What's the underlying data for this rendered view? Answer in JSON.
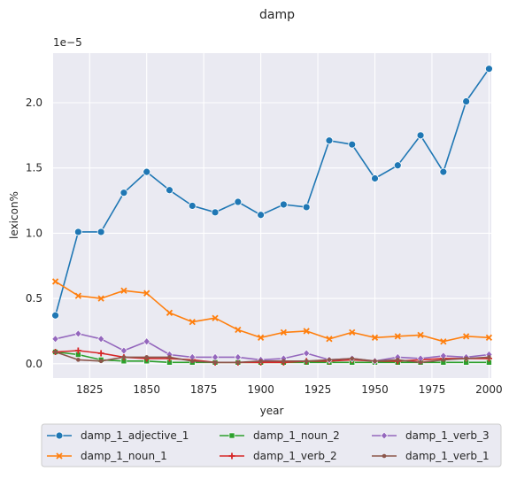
{
  "chart_data": {
    "type": "line",
    "title": "damp",
    "xlabel": "year",
    "ylabel": "lexicon%",
    "y_scale_label": "1e−5",
    "xlim": [
      1809,
      2001
    ],
    "ylim": [
      -0.11,
      2.38
    ],
    "x_ticks": [
      1825,
      1850,
      1875,
      1900,
      1925,
      1950,
      1975,
      2000
    ],
    "y_ticks": [
      0.0,
      0.5,
      1.0,
      1.5,
      2.0
    ],
    "y_tick_labels": [
      "0.0",
      "0.5",
      "1.0",
      "1.5",
      "2.0"
    ],
    "grid": true,
    "legend_position": "bottom",
    "x": [
      1810,
      1820,
      1830,
      1840,
      1850,
      1860,
      1870,
      1880,
      1890,
      1900,
      1910,
      1920,
      1930,
      1940,
      1950,
      1960,
      1970,
      1980,
      1990,
      2000
    ],
    "series": [
      {
        "name": "damp_1_adjective_1",
        "color": "#1f77b4",
        "marker": "circle",
        "values": [
          0.37,
          1.01,
          1.01,
          1.31,
          1.47,
          1.33,
          1.21,
          1.16,
          1.24,
          1.14,
          1.22,
          1.2,
          1.71,
          1.68,
          1.42,
          1.52,
          1.75,
          1.47,
          2.01,
          2.26
        ]
      },
      {
        "name": "damp_1_noun_1",
        "color": "#ff7f0e",
        "marker": "x",
        "values": [
          0.63,
          0.52,
          0.5,
          0.56,
          0.54,
          0.39,
          0.32,
          0.35,
          0.26,
          0.2,
          0.24,
          0.25,
          0.19,
          0.24,
          0.2,
          0.21,
          0.22,
          0.17,
          0.21,
          0.2
        ]
      },
      {
        "name": "damp_1_noun_2",
        "color": "#2ca02c",
        "marker": "square",
        "values": [
          0.09,
          0.07,
          0.03,
          0.02,
          0.02,
          0.01,
          0.01,
          0.01,
          0.01,
          0.01,
          0.01,
          0.01,
          0.01,
          0.01,
          0.01,
          0.01,
          0.01,
          0.01,
          0.01,
          0.01
        ]
      },
      {
        "name": "damp_1_verb_2",
        "color": "#d62728",
        "marker": "plus",
        "values": [
          0.09,
          0.1,
          0.08,
          0.05,
          0.04,
          0.04,
          0.03,
          0.01,
          0.01,
          0.01,
          0.01,
          0.02,
          0.02,
          0.03,
          0.02,
          0.02,
          0.03,
          0.04,
          0.04,
          0.04
        ]
      },
      {
        "name": "damp_1_verb_3",
        "color": "#9467bd",
        "marker": "diamond",
        "values": [
          0.19,
          0.23,
          0.19,
          0.1,
          0.17,
          0.07,
          0.05,
          0.05,
          0.05,
          0.03,
          0.04,
          0.08,
          0.03,
          0.04,
          0.02,
          0.05,
          0.04,
          0.06,
          0.05,
          0.07
        ]
      },
      {
        "name": "damp_1_verb_1",
        "color": "#8c564b",
        "marker": "dot",
        "values": [
          0.09,
          0.03,
          0.02,
          0.05,
          0.05,
          0.05,
          0.02,
          0.01,
          0.01,
          0.02,
          0.02,
          0.02,
          0.03,
          0.04,
          0.02,
          0.03,
          0.01,
          0.03,
          0.04,
          0.05
        ]
      }
    ]
  }
}
